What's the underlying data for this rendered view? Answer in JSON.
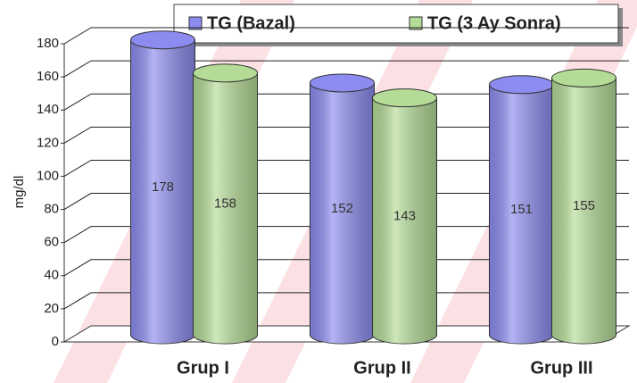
{
  "chart_data": {
    "type": "bar",
    "style": "3d-cylinder",
    "y_label": "mg/dl",
    "categories": [
      "Grup I",
      "Grup II",
      "Grup III"
    ],
    "series": [
      {
        "name": "TG (Bazal)",
        "color": "#8c8cf0",
        "values": [
          178,
          152,
          151
        ]
      },
      {
        "name": "TG (3 Ay Sonra)",
        "color": "#b4dc96",
        "values": [
          158,
          143,
          155
        ]
      }
    ],
    "ylim": [
      0,
      180
    ],
    "yticks": [
      0,
      20,
      40,
      60,
      80,
      100,
      120,
      140,
      160,
      180
    ],
    "grid": true
  }
}
